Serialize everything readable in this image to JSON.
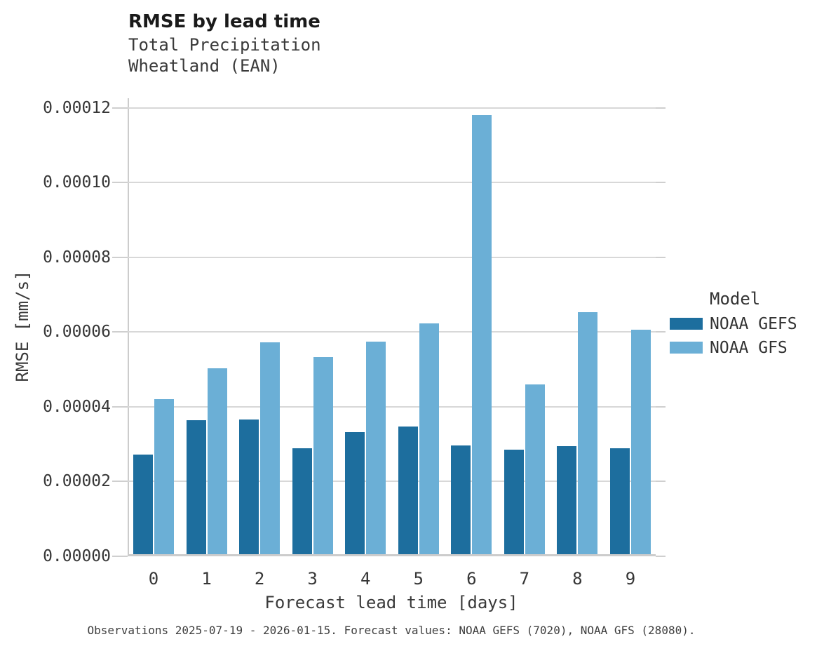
{
  "title": "RMSE by lead time",
  "caption": "Observations 2025-07-19 - 2026-01-15. Forecast values: NOAA GEFS (7020), NOAA GFS (28080).",
  "colors": {
    "gefs_bar": "#1d6e9e",
    "gfs_bar": "#6bafd6",
    "gridline": "#d8d8d8",
    "spine": "#cccccc"
  },
  "chart_data": {
    "type": "bar",
    "title": "RMSE by lead time",
    "subtitle": [
      "Total Precipitation",
      "Wheatland (EAN)"
    ],
    "xlabel": "Forecast lead time [days]",
    "ylabel": "RMSE [mm/s]",
    "categories": [
      "0",
      "1",
      "2",
      "3",
      "4",
      "5",
      "6",
      "7",
      "8",
      "9"
    ],
    "series": [
      {
        "name": "NOAA GEFS",
        "color": "#1d6e9e",
        "values": [
          2.72e-05,
          3.64e-05,
          3.66e-05,
          2.89e-05,
          3.33e-05,
          3.48e-05,
          2.97e-05,
          2.86e-05,
          2.95e-05,
          2.89e-05
        ]
      },
      {
        "name": "NOAA GFS",
        "color": "#6bafd6",
        "values": [
          4.21e-05,
          5.03e-05,
          5.72e-05,
          5.33e-05,
          5.75e-05,
          6.24e-05,
          0.0001181,
          4.59e-05,
          6.54e-05,
          6.07e-05
        ]
      }
    ],
    "ylim": [
      0,
      0.00012
    ],
    "yticks": [
      0.0,
      2e-05,
      4e-05,
      6e-05,
      8e-05,
      0.0001,
      0.00012
    ],
    "ytick_labels": [
      "0.00000",
      "0.00002",
      "0.00004",
      "0.00006",
      "0.00008",
      "0.00010",
      "0.00012"
    ],
    "grid": true,
    "legend": {
      "title": "Model",
      "position": "right"
    }
  }
}
